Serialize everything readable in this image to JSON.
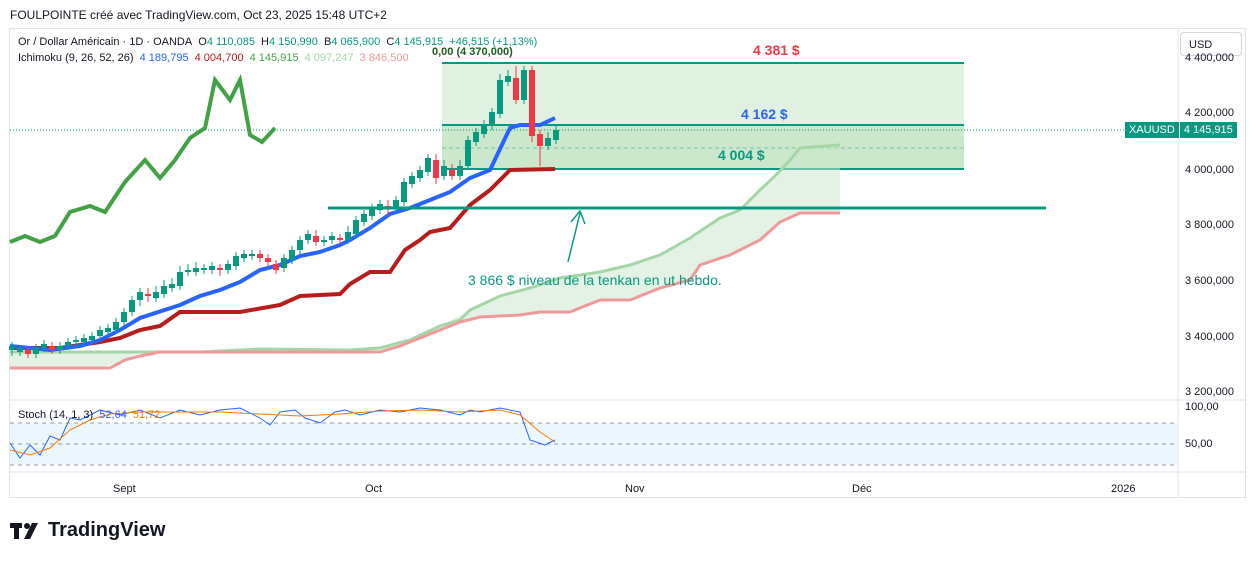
{
  "header": {
    "title": "FOULPOINTE créé avec TradingView.com, Oct 23, 2025 15:48 UTC+2"
  },
  "legend": {
    "symbol": "Or / Dollar Américain · 1D · OANDA",
    "o_label": "O",
    "o_value": "4 110,085",
    "h_label": "H",
    "h_value": "4 150,990",
    "b_label": "B",
    "b_value": "4 065,900",
    "c_label": "C",
    "c_value": "4 145,915",
    "change": "+46,515 (+1,13%)",
    "ichimoku_name": "Ichimoku (9, 26, 52, 26)",
    "ichimoku_values": [
      "4 189,795",
      "4 004,700",
      "4 145,915",
      "4 097,247",
      "3 846,500"
    ],
    "stoch_name": "Stoch (14, 1, 3)",
    "stoch_values": [
      "52,64",
      "51,72"
    ]
  },
  "currency_button": "USD",
  "price_tag": {
    "symbol": "XAUUSD",
    "value": "4 145,915"
  },
  "y_axis": [
    "4 400,000",
    "4 200,000",
    "4 000,000",
    "3 800,000",
    "3 600,000",
    "3 400,000",
    "3 200,000"
  ],
  "stoch_axis": [
    "100,00",
    "50,00"
  ],
  "x_axis": [
    "Sept",
    "Oct",
    "Nov",
    "Déc",
    "2026"
  ],
  "annotations": {
    "level_high": "4 381 $",
    "level_mid": "4 162 $",
    "level_low": "4 004 $",
    "tenkan_note": "3 866 $ niveau de la tenkan en ut hebdo.",
    "overlap_text": "0,00 (4 370,000)"
  },
  "colors": {
    "up": "#089981",
    "down": "#f23645",
    "tenkan": "#2962ff",
    "kijun": "#b71c1c",
    "chikou": "#43a047",
    "span_a": "#a5d6a7",
    "span_b": "#ef9a9a",
    "box": "#c8e6c9"
  },
  "logo": "TradingView"
}
